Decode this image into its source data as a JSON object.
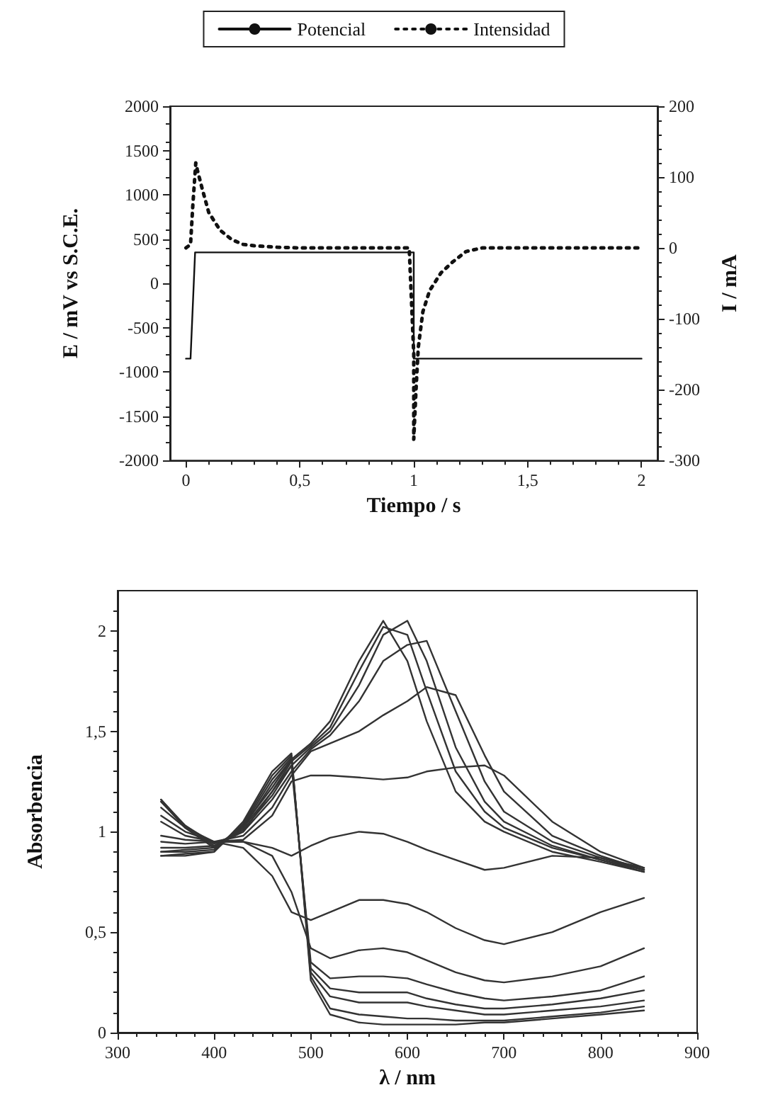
{
  "chart_data": [
    {
      "type": "line",
      "xlabel": "Tiempo / s",
      "ylabel": "E / mV vs S.C.E.",
      "y2label": "I / mA",
      "legend": "top",
      "marker": "none",
      "grid": false,
      "xlim": [
        -0.07,
        2.07
      ],
      "xticks": [
        0,
        {
          "value": 0.5,
          "label": "0,5"
        },
        1,
        {
          "value": 1.5,
          "label": "1,5"
        },
        2
      ],
      "ylim": [
        -2000,
        2000
      ],
      "yticks": [
        -2000,
        -1500,
        -1000,
        -500,
        0,
        500,
        1000,
        1500,
        2000
      ],
      "y2lim": [
        -300,
        200
      ],
      "y2ticks": [
        -300,
        -200,
        -100,
        0,
        100,
        200
      ],
      "series": [
        {
          "name": "Potencial",
          "color": "#111111",
          "line_style": "solid",
          "x": [
            0,
            0.02,
            0.04,
            1.0,
            1.0,
            2.0
          ],
          "values": [
            -850,
            -850,
            350,
            350,
            -850,
            -850
          ]
        },
        {
          "name": "Intensidad",
          "color": "#111111",
          "line_style": "dotted",
          "axis": "y2",
          "x": [
            0,
            0.02,
            0.03,
            0.043,
            0.05,
            0.07,
            0.1,
            0.15,
            0.2,
            0.25,
            0.3,
            0.4,
            0.5,
            0.7,
            0.98,
            1.0,
            1.0,
            1.01,
            1.02,
            1.04,
            1.07,
            1.12,
            1.17,
            1.23,
            1.3,
            2.0
          ],
          "values": [
            0,
            5,
            60,
            120,
            110,
            85,
            50,
            25,
            12,
            5,
            3,
            1,
            0,
            0,
            0,
            -150,
            -270,
            -200,
            -140,
            -90,
            -60,
            -35,
            -20,
            -5,
            0,
            0
          ]
        }
      ]
    },
    {
      "type": "line",
      "xlabel": "λ / nm",
      "ylabel": "Absorbencia",
      "marker": "none",
      "grid": false,
      "xlim": [
        300,
        900
      ],
      "xticks": [
        300,
        400,
        500,
        600,
        700,
        800,
        900
      ],
      "ylim": [
        0,
        2.2
      ],
      "yticks": [
        0,
        {
          "value": 0.5,
          "label": "0,5"
        },
        1,
        {
          "value": 1.5,
          "label": "1,5"
        },
        2
      ],
      "x": [
        345,
        370,
        400,
        430,
        460,
        480,
        500,
        520,
        550,
        575,
        600,
        620,
        650,
        680,
        700,
        750,
        800,
        845
      ],
      "series": [
        {
          "color": "#333333",
          "values": [
            1.15,
            1.02,
            0.92,
            1.03,
            1.22,
            1.36,
            1.44,
            1.55,
            1.85,
            2.05,
            1.85,
            1.55,
            1.2,
            1.05,
            1.0,
            0.9,
            0.85,
            0.8
          ]
        },
        {
          "color": "#333333",
          "values": [
            1.16,
            1.02,
            0.92,
            1.02,
            1.2,
            1.35,
            1.43,
            1.52,
            1.8,
            2.02,
            1.98,
            1.7,
            1.3,
            1.1,
            1.02,
            0.92,
            0.86,
            0.8
          ]
        },
        {
          "color": "#333333",
          "values": [
            1.16,
            1.03,
            0.93,
            1.01,
            1.18,
            1.33,
            1.42,
            1.5,
            1.73,
            1.98,
            2.05,
            1.85,
            1.42,
            1.15,
            1.05,
            0.93,
            0.86,
            0.81
          ]
        },
        {
          "color": "#333333",
          "values": [
            1.15,
            1.03,
            0.94,
            1.0,
            1.16,
            1.3,
            1.41,
            1.48,
            1.65,
            1.85,
            1.93,
            1.95,
            1.6,
            1.25,
            1.1,
            0.95,
            0.87,
            0.81
          ]
        },
        {
          "color": "#333333",
          "values": [
            1.12,
            1.02,
            0.95,
            0.98,
            1.12,
            1.28,
            1.4,
            1.44,
            1.5,
            1.58,
            1.65,
            1.72,
            1.68,
            1.38,
            1.2,
            0.98,
            0.88,
            0.81
          ]
        },
        {
          "color": "#333333",
          "values": [
            1.08,
            1.0,
            0.95,
            0.96,
            1.08,
            1.25,
            1.28,
            1.28,
            1.27,
            1.26,
            1.27,
            1.3,
            1.32,
            1.33,
            1.28,
            1.05,
            0.9,
            0.82
          ]
        },
        {
          "color": "#333333",
          "values": [
            1.05,
            0.98,
            0.95,
            0.95,
            0.92,
            0.88,
            0.93,
            0.97,
            1.0,
            0.99,
            0.95,
            0.91,
            0.86,
            0.81,
            0.82,
            0.88,
            0.87,
            0.82
          ]
        },
        {
          "color": "#333333",
          "values": [
            0.98,
            0.96,
            0.95,
            0.92,
            0.78,
            0.6,
            0.56,
            0.6,
            0.66,
            0.66,
            0.64,
            0.6,
            0.52,
            0.46,
            0.44,
            0.5,
            0.6,
            0.67
          ]
        },
        {
          "color": "#333333",
          "values": [
            0.95,
            0.94,
            0.95,
            0.95,
            0.88,
            0.7,
            0.42,
            0.37,
            0.41,
            0.42,
            0.4,
            0.36,
            0.3,
            0.26,
            0.25,
            0.28,
            0.33,
            0.42
          ]
        },
        {
          "color": "#333333",
          "values": [
            0.92,
            0.92,
            0.93,
            1.0,
            1.2,
            1.33,
            0.35,
            0.27,
            0.28,
            0.28,
            0.27,
            0.24,
            0.2,
            0.17,
            0.16,
            0.18,
            0.21,
            0.28
          ]
        },
        {
          "color": "#333333",
          "values": [
            0.9,
            0.91,
            0.92,
            1.02,
            1.24,
            1.36,
            0.32,
            0.22,
            0.2,
            0.2,
            0.2,
            0.17,
            0.14,
            0.12,
            0.12,
            0.14,
            0.17,
            0.21
          ]
        },
        {
          "color": "#333333",
          "values": [
            0.9,
            0.9,
            0.91,
            1.03,
            1.26,
            1.37,
            0.3,
            0.18,
            0.15,
            0.15,
            0.15,
            0.13,
            0.11,
            0.09,
            0.09,
            0.11,
            0.13,
            0.16
          ]
        },
        {
          "color": "#333333",
          "values": [
            0.88,
            0.89,
            0.9,
            1.04,
            1.28,
            1.38,
            0.28,
            0.12,
            0.09,
            0.08,
            0.07,
            0.07,
            0.06,
            0.06,
            0.06,
            0.08,
            0.1,
            0.13
          ]
        },
        {
          "color": "#333333",
          "values": [
            0.88,
            0.88,
            0.9,
            1.05,
            1.3,
            1.39,
            0.26,
            0.09,
            0.05,
            0.04,
            0.04,
            0.04,
            0.04,
            0.05,
            0.05,
            0.07,
            0.09,
            0.11
          ]
        }
      ]
    }
  ]
}
